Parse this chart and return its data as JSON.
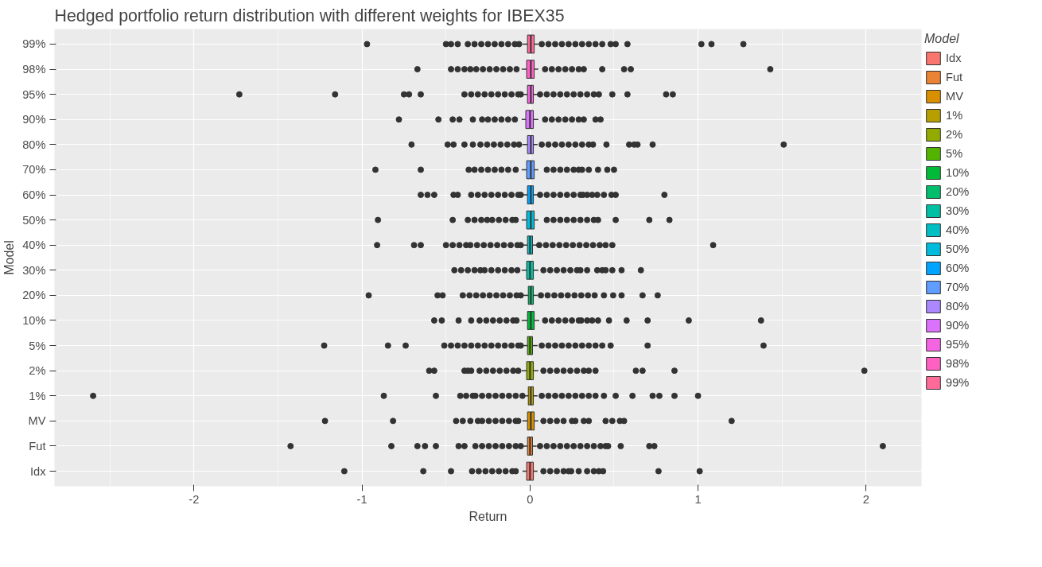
{
  "chart_data": {
    "type": "box",
    "orientation": "horizontal",
    "title": "Hedged portfolio return distribution with different weights for IBEX35",
    "xlabel": "Return",
    "ylabel": "Model",
    "legend_title": "Model",
    "legend": "right",
    "grid": true,
    "xlim": [
      -2.83,
      2.33
    ],
    "xticks": [
      -2,
      -1,
      0,
      1,
      2
    ],
    "categories": [
      "99%",
      "98%",
      "95%",
      "90%",
      "80%",
      "70%",
      "60%",
      "50%",
      "40%",
      "30%",
      "20%",
      "10%",
      "5%",
      "2%",
      "1%",
      "MV",
      "Fut",
      "Idx"
    ],
    "series": [
      {
        "name": "Idx",
        "color": "#F8766D",
        "boxes": [
          null,
          null,
          null,
          null,
          null,
          null,
          null,
          null,
          null,
          null,
          null,
          null,
          null,
          null,
          null,
          null,
          null,
          {
            "low": -0.045,
            "q1": -0.02,
            "median": 0.0,
            "q3": 0.02,
            "high": 0.045,
            "outliers": [
              -1.105,
              -0.635,
              -0.47,
              -0.345,
              -0.305,
              -0.265,
              -0.225,
              -0.185,
              -0.145,
              -0.105,
              -0.085,
              0.08,
              0.12,
              0.16,
              0.2,
              0.23,
              0.245,
              0.29,
              0.34,
              0.38,
              0.41,
              0.435,
              0.765,
              1.01
            ]
          }
        ]
      },
      {
        "name": "Fut",
        "color": "#EB8335",
        "boxes": [
          null,
          null,
          null,
          null,
          null,
          null,
          null,
          null,
          null,
          null,
          null,
          null,
          null,
          null,
          null,
          null,
          {
            "low": -0.04,
            "q1": -0.015,
            "median": 0.0,
            "q3": 0.015,
            "high": 0.04,
            "outliers": [
              -1.425,
              -0.825,
              -0.67,
              -0.625,
              -0.56,
              -0.425,
              -0.39,
              -0.325,
              -0.285,
              -0.245,
              -0.205,
              -0.165,
              -0.125,
              -0.085,
              -0.055,
              0.06,
              0.1,
              0.14,
              0.18,
              0.22,
              0.26,
              0.3,
              0.34,
              0.38,
              0.42,
              0.45,
              0.465,
              0.54,
              0.71,
              0.74,
              2.1
            ]
          },
          null
        ]
      },
      {
        "name": "MV",
        "color": "#D89000",
        "boxes": [
          null,
          null,
          null,
          null,
          null,
          null,
          null,
          null,
          null,
          null,
          null,
          null,
          null,
          null,
          null,
          {
            "low": -0.045,
            "q1": -0.015,
            "median": 0.005,
            "q3": 0.025,
            "high": 0.05,
            "outliers": [
              -1.22,
              -0.815,
              -0.44,
              -0.4,
              -0.355,
              -0.31,
              -0.285,
              -0.245,
              -0.205,
              -0.165,
              -0.125,
              -0.085,
              -0.07,
              0.08,
              0.12,
              0.16,
              0.2,
              0.25,
              0.27,
              0.32,
              0.35,
              0.45,
              0.49,
              0.535,
              0.56,
              1.2
            ]
          },
          null,
          null
        ]
      },
      {
        "name": "1%",
        "color": "#B79F00",
        "boxes": [
          null,
          null,
          null,
          null,
          null,
          null,
          null,
          null,
          null,
          null,
          null,
          null,
          null,
          null,
          {
            "low": -0.04,
            "q1": -0.01,
            "median": 0.005,
            "q3": 0.02,
            "high": 0.045,
            "outliers": [
              -2.6,
              -0.87,
              -0.56,
              -0.415,
              -0.38,
              -0.34,
              -0.325,
              -0.285,
              -0.245,
              -0.205,
              -0.165,
              -0.125,
              -0.085,
              -0.045,
              0.07,
              0.11,
              0.15,
              0.19,
              0.23,
              0.27,
              0.31,
              0.35,
              0.39,
              0.44,
              0.51,
              0.61,
              0.73,
              0.77,
              0.86,
              1.0
            ]
          },
          null,
          null,
          null
        ]
      },
      {
        "name": "2%",
        "color": "#93AA00",
        "boxes": [
          null,
          null,
          null,
          null,
          null,
          null,
          null,
          null,
          null,
          null,
          null,
          null,
          null,
          {
            "low": -0.05,
            "q1": -0.02,
            "median": 0.0,
            "q3": 0.02,
            "high": 0.05,
            "outliers": [
              -0.6,
              -0.57,
              -0.39,
              -0.37,
              -0.35,
              -0.3,
              -0.26,
              -0.22,
              -0.18,
              -0.14,
              -0.1,
              -0.07,
              0.08,
              0.12,
              0.16,
              0.2,
              0.24,
              0.28,
              0.32,
              0.35,
              0.39,
              0.63,
              0.67,
              0.86,
              1.99
            ]
          },
          null,
          null,
          null,
          null
        ]
      },
      {
        "name": "5%",
        "color": "#53B400",
        "boxes": [
          null,
          null,
          null,
          null,
          null,
          null,
          null,
          null,
          null,
          null,
          null,
          null,
          {
            "low": -0.04,
            "q1": -0.015,
            "median": 0.0,
            "q3": 0.015,
            "high": 0.045,
            "outliers": [
              -1.225,
              -0.845,
              -0.74,
              -0.51,
              -0.47,
              -0.43,
              -0.39,
              -0.35,
              -0.31,
              -0.27,
              -0.23,
              -0.19,
              -0.15,
              -0.11,
              -0.07,
              -0.055,
              0.07,
              0.11,
              0.15,
              0.19,
              0.23,
              0.27,
              0.31,
              0.35,
              0.39,
              0.43,
              0.48,
              0.7,
              1.39
            ]
          },
          null,
          null,
          null,
          null,
          null
        ]
      },
      {
        "name": "10%",
        "color": "#00BA38",
        "boxes": [
          null,
          null,
          null,
          null,
          null,
          null,
          null,
          null,
          null,
          null,
          null,
          {
            "low": -0.05,
            "q1": -0.015,
            "median": 0.005,
            "q3": 0.025,
            "high": 0.055,
            "outliers": [
              -0.57,
              -0.525,
              -0.425,
              -0.35,
              -0.3,
              -0.26,
              -0.22,
              -0.18,
              -0.14,
              -0.1,
              -0.08,
              0.09,
              0.13,
              0.17,
              0.21,
              0.25,
              0.29,
              0.305,
              0.34,
              0.37,
              0.405,
              0.47,
              0.575,
              0.7,
              0.945,
              1.375
            ]
          },
          null,
          null,
          null,
          null,
          null,
          null
        ]
      },
      {
        "name": "20%",
        "color": "#00BE6C",
        "boxes": [
          null,
          null,
          null,
          null,
          null,
          null,
          null,
          null,
          null,
          null,
          {
            "low": -0.04,
            "q1": -0.01,
            "median": 0.005,
            "q3": 0.02,
            "high": 0.045,
            "outliers": [
              -0.96,
              -0.55,
              -0.52,
              -0.4,
              -0.36,
              -0.32,
              -0.28,
              -0.24,
              -0.2,
              -0.16,
              -0.12,
              -0.08,
              -0.055,
              0.065,
              0.105,
              0.145,
              0.185,
              0.225,
              0.265,
              0.305,
              0.345,
              0.385,
              0.44,
              0.495,
              0.545,
              0.67,
              0.76
            ]
          },
          null,
          null,
          null,
          null,
          null,
          null,
          null
        ]
      },
      {
        "name": "30%",
        "color": "#00C0A3",
        "boxes": [
          null,
          null,
          null,
          null,
          null,
          null,
          null,
          null,
          null,
          {
            "low": -0.05,
            "q1": -0.02,
            "median": 0.0,
            "q3": 0.02,
            "high": 0.05,
            "outliers": [
              -0.45,
              -0.41,
              -0.37,
              -0.33,
              -0.295,
              -0.27,
              -0.23,
              -0.19,
              -0.15,
              -0.11,
              -0.075,
              0.08,
              0.12,
              0.16,
              0.2,
              0.24,
              0.28,
              0.3,
              0.34,
              0.4,
              0.43,
              0.45,
              0.49,
              0.545,
              0.66
            ]
          },
          null,
          null,
          null,
          null,
          null,
          null,
          null,
          null
        ]
      },
      {
        "name": "40%",
        "color": "#00BFC4",
        "boxes": [
          null,
          null,
          null,
          null,
          null,
          null,
          null,
          null,
          {
            "low": -0.04,
            "q1": -0.015,
            "median": 0.0,
            "q3": 0.015,
            "high": 0.04,
            "outliers": [
              -0.91,
              -0.69,
              -0.65,
              -0.5,
              -0.46,
              -0.42,
              -0.38,
              -0.355,
              -0.315,
              -0.275,
              -0.235,
              -0.195,
              -0.155,
              -0.115,
              -0.075,
              -0.055,
              0.055,
              0.095,
              0.135,
              0.175,
              0.215,
              0.255,
              0.295,
              0.335,
              0.375,
              0.415,
              0.45,
              0.49,
              1.09
            ]
          },
          null,
          null,
          null,
          null,
          null,
          null,
          null,
          null,
          null
        ]
      },
      {
        "name": "50%",
        "color": "#00BCDC",
        "boxes": [
          null,
          null,
          null,
          null,
          null,
          null,
          null,
          {
            "low": -0.05,
            "q1": -0.02,
            "median": 0.005,
            "q3": 0.025,
            "high": 0.05,
            "outliers": [
              -0.905,
              -0.46,
              -0.37,
              -0.33,
              -0.29,
              -0.255,
              -0.225,
              -0.185,
              -0.145,
              -0.105,
              -0.085,
              0.1,
              0.14,
              0.18,
              0.22,
              0.26,
              0.3,
              0.34,
              0.38,
              0.405,
              0.51,
              0.71,
              0.83
            ]
          },
          null,
          null,
          null,
          null,
          null,
          null,
          null,
          null,
          null,
          null
        ]
      },
      {
        "name": "60%",
        "color": "#00A4FF",
        "boxes": [
          null,
          null,
          null,
          null,
          null,
          null,
          {
            "low": -0.045,
            "q1": -0.015,
            "median": 0.005,
            "q3": 0.02,
            "high": 0.045,
            "outliers": [
              -0.65,
              -0.61,
              -0.57,
              -0.455,
              -0.43,
              -0.35,
              -0.31,
              -0.27,
              -0.23,
              -0.19,
              -0.15,
              -0.11,
              -0.07,
              -0.055,
              0.06,
              0.1,
              0.14,
              0.18,
              0.22,
              0.26,
              0.3,
              0.315,
              0.34,
              0.37,
              0.4,
              0.44,
              0.485,
              0.51,
              0.8
            ]
          },
          null,
          null,
          null,
          null,
          null,
          null,
          null,
          null,
          null,
          null,
          null
        ]
      },
      {
        "name": "70%",
        "color": "#619CFF",
        "boxes": [
          null,
          null,
          null,
          null,
          null,
          {
            "low": -0.05,
            "q1": -0.02,
            "median": 0.005,
            "q3": 0.025,
            "high": 0.05,
            "outliers": [
              -0.92,
              -0.65,
              -0.365,
              -0.33,
              -0.29,
              -0.25,
              -0.21,
              -0.17,
              -0.13,
              -0.085,
              0.1,
              0.14,
              0.18,
              0.22,
              0.26,
              0.29,
              0.31,
              0.35,
              0.405,
              0.46,
              0.5
            ]
          },
          null,
          null,
          null,
          null,
          null,
          null,
          null,
          null,
          null,
          null,
          null,
          null
        ]
      },
      {
        "name": "80%",
        "color": "#AC88FF",
        "boxes": [
          null,
          null,
          null,
          null,
          {
            "low": -0.045,
            "q1": -0.015,
            "median": 0.005,
            "q3": 0.02,
            "high": 0.045,
            "outliers": [
              -0.705,
              -0.49,
              -0.455,
              -0.39,
              -0.34,
              -0.295,
              -0.255,
              -0.215,
              -0.175,
              -0.135,
              -0.095,
              -0.065,
              0.07,
              0.11,
              0.15,
              0.19,
              0.23,
              0.27,
              0.31,
              0.35,
              0.375,
              0.455,
              0.59,
              0.62,
              0.64,
              0.73,
              1.51
            ]
          },
          null,
          null,
          null,
          null,
          null,
          null,
          null,
          null,
          null,
          null,
          null,
          null,
          null
        ]
      },
      {
        "name": "90%",
        "color": "#DB72FB",
        "boxes": [
          null,
          null,
          null,
          {
            "low": -0.05,
            "q1": -0.025,
            "median": 0.0,
            "q3": 0.02,
            "high": 0.05,
            "outliers": [
              -0.78,
              -0.545,
              -0.46,
              -0.42,
              -0.34,
              -0.285,
              -0.25,
              -0.21,
              -0.17,
              -0.13,
              -0.09,
              0.09,
              0.13,
              0.17,
              0.21,
              0.25,
              0.29,
              0.32,
              0.39,
              0.42
            ]
          },
          null,
          null,
          null,
          null,
          null,
          null,
          null,
          null,
          null,
          null,
          null,
          null,
          null,
          null
        ]
      },
      {
        "name": "95%",
        "color": "#F564E3",
        "boxes": [
          null,
          null,
          {
            "low": -0.045,
            "q1": -0.015,
            "median": 0.005,
            "q3": 0.02,
            "high": 0.045,
            "outliers": [
              -1.73,
              -1.16,
              -0.75,
              -0.72,
              -0.65,
              -0.39,
              -0.35,
              -0.31,
              -0.27,
              -0.23,
              -0.19,
              -0.15,
              -0.11,
              -0.07,
              -0.055,
              0.06,
              0.1,
              0.14,
              0.18,
              0.22,
              0.26,
              0.3,
              0.34,
              0.38,
              0.41,
              0.49,
              0.58,
              0.81,
              0.85
            ]
          },
          null,
          null,
          null,
          null,
          null,
          null,
          null,
          null,
          null,
          null,
          null,
          null,
          null,
          null,
          null
        ]
      },
      {
        "name": "98%",
        "color": "#FF61C3",
        "boxes": [
          null,
          {
            "low": -0.05,
            "q1": -0.02,
            "median": 0.005,
            "q3": 0.025,
            "high": 0.05,
            "outliers": [
              -0.67,
              -0.47,
              -0.43,
              -0.39,
              -0.355,
              -0.32,
              -0.28,
              -0.24,
              -0.2,
              -0.16,
              -0.12,
              -0.08,
              0.09,
              0.13,
              0.17,
              0.21,
              0.25,
              0.29,
              0.32,
              0.43,
              0.56,
              0.6,
              1.43
            ]
          },
          null,
          null,
          null,
          null,
          null,
          null,
          null,
          null,
          null,
          null,
          null,
          null,
          null,
          null,
          null,
          null
        ]
      },
      {
        "name": "99%",
        "color": "#FF6A98",
        "boxes": [
          {
            "low": -0.045,
            "q1": -0.015,
            "median": 0.005,
            "q3": 0.025,
            "high": 0.05,
            "outliers": [
              -0.97,
              -0.5,
              -0.47,
              -0.43,
              -0.37,
              -0.33,
              -0.29,
              -0.25,
              -0.21,
              -0.17,
              -0.13,
              -0.09,
              -0.065,
              0.07,
              0.11,
              0.15,
              0.19,
              0.23,
              0.27,
              0.31,
              0.35,
              0.39,
              0.43,
              0.48,
              0.51,
              0.58,
              1.02,
              1.08,
              1.27
            ]
          },
          null,
          null,
          null,
          null,
          null,
          null,
          null,
          null,
          null,
          null,
          null,
          null,
          null,
          null,
          null,
          null,
          null
        ]
      }
    ]
  }
}
